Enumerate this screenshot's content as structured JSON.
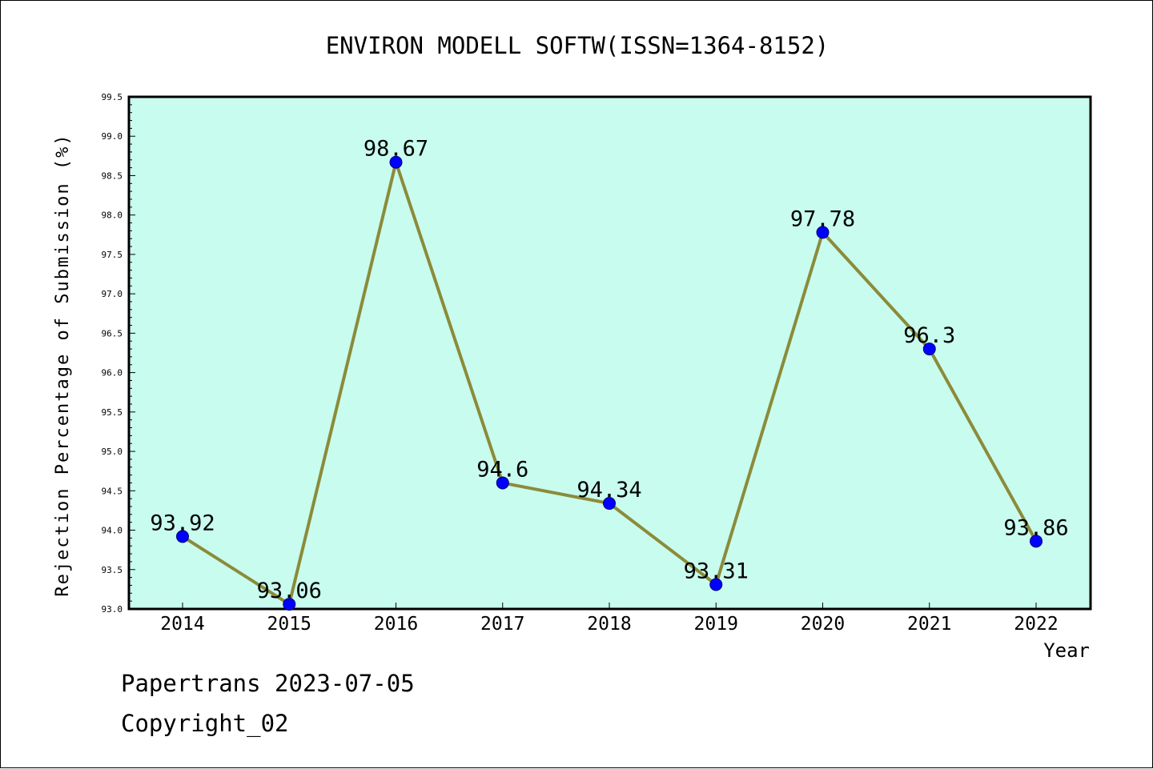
{
  "chart_data": {
    "type": "line",
    "title": "ENVIRON MODELL SOFTW(ISSN=1364-8152)",
    "xlabel": "Year",
    "ylabel": "Rejection Percentage of Submission (%)",
    "categories": [
      "2014",
      "2015",
      "2016",
      "2017",
      "2018",
      "2019",
      "2020",
      "2021",
      "2022"
    ],
    "values": [
      93.92,
      93.06,
      98.67,
      94.6,
      94.34,
      93.31,
      97.78,
      96.3,
      93.86
    ],
    "data_labels": [
      "93.92",
      "93.06",
      "98.67",
      "94.6",
      "94.34",
      "93.31",
      "97.78",
      "96.3",
      "93.86"
    ],
    "ylim": [
      93.0,
      99.5
    ],
    "yticks": [
      "93.0",
      "93.5",
      "94.0",
      "94.5",
      "95.0",
      "95.5",
      "96.0",
      "96.5",
      "97.0",
      "97.5",
      "98.0",
      "98.5",
      "99.0",
      "99.5"
    ],
    "grid": false,
    "legend": "none",
    "colors": {
      "plot_background": "#c8fcee",
      "line": "#8b8b3a",
      "marker": "#0000ff",
      "axes": "#000000"
    }
  },
  "footer": {
    "line1": "Papertrans 2023-07-05",
    "line2": "Copyright_02"
  }
}
